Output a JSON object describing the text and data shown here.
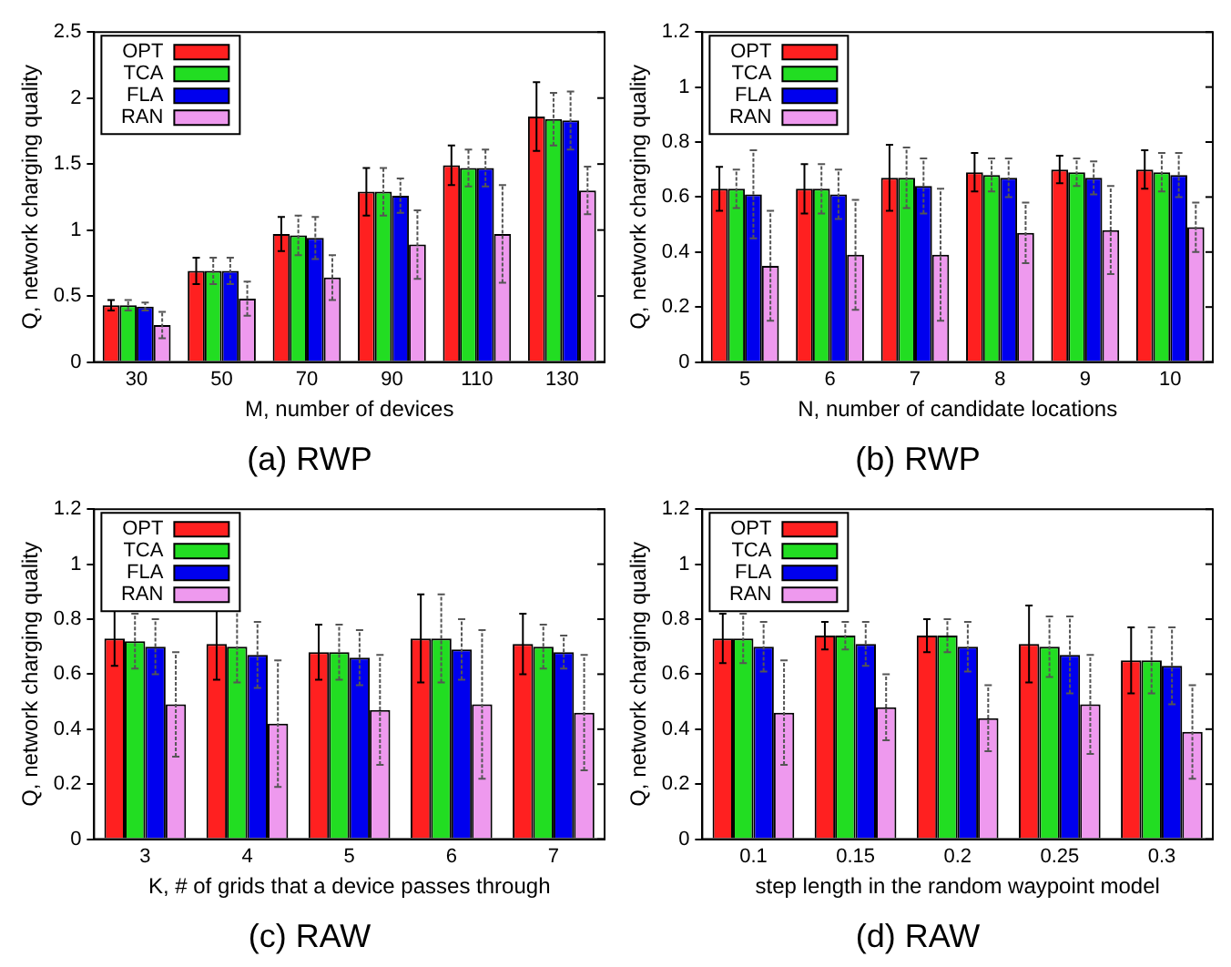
{
  "chart_data": [
    {
      "type": "bar",
      "title": "(a) RWP",
      "xlabel": "M, number of devices",
      "ylabel": "Q, network charging quality",
      "categories": [
        "30",
        "50",
        "70",
        "90",
        "110",
        "130"
      ],
      "ylim": [
        0,
        2.5
      ],
      "yticks": [
        0,
        0.5,
        1,
        1.5,
        2,
        2.5
      ],
      "grid": false,
      "legend": "top left",
      "series": [
        {
          "name": "OPT",
          "color": "#ff2020",
          "values": [
            0.43,
            0.69,
            0.97,
            1.29,
            1.49,
            1.86
          ],
          "errors": [
            0.04,
            0.1,
            0.13,
            0.18,
            0.15,
            0.26
          ]
        },
        {
          "name": "TCA",
          "color": "#22dd22",
          "values": [
            0.43,
            0.69,
            0.96,
            1.29,
            1.47,
            1.84
          ],
          "errors": [
            0.04,
            0.1,
            0.15,
            0.18,
            0.14,
            0.2
          ]
        },
        {
          "name": "FLA",
          "color": "#0000ee",
          "values": [
            0.42,
            0.69,
            0.94,
            1.26,
            1.47,
            1.83
          ],
          "errors": [
            0.03,
            0.1,
            0.16,
            0.13,
            0.14,
            0.22
          ]
        },
        {
          "name": "RAN",
          "color": "#ee99ee",
          "values": [
            0.28,
            0.48,
            0.64,
            0.89,
            0.97,
            1.3
          ],
          "errors": [
            0.1,
            0.13,
            0.17,
            0.26,
            0.37,
            0.18
          ]
        }
      ]
    },
    {
      "type": "bar",
      "title": "(b) RWP",
      "xlabel": "N, number of candidate locations",
      "ylabel": "Q, network charging quality",
      "categories": [
        "5",
        "6",
        "7",
        "8",
        "9",
        "10"
      ],
      "ylim": [
        0,
        1.2
      ],
      "yticks": [
        0,
        0.2,
        0.4,
        0.6,
        0.8,
        1,
        1.2
      ],
      "grid": false,
      "legend": "top left",
      "series": [
        {
          "name": "OPT",
          "color": "#ff2020",
          "values": [
            0.63,
            0.63,
            0.67,
            0.69,
            0.7,
            0.7
          ],
          "errors": [
            0.08,
            0.09,
            0.12,
            0.07,
            0.05,
            0.07
          ]
        },
        {
          "name": "TCA",
          "color": "#22dd22",
          "values": [
            0.63,
            0.63,
            0.67,
            0.68,
            0.69,
            0.69
          ],
          "errors": [
            0.07,
            0.09,
            0.11,
            0.06,
            0.05,
            0.07
          ]
        },
        {
          "name": "FLA",
          "color": "#0000ee",
          "values": [
            0.61,
            0.61,
            0.64,
            0.67,
            0.67,
            0.68
          ],
          "errors": [
            0.16,
            0.09,
            0.1,
            0.07,
            0.06,
            0.08
          ]
        },
        {
          "name": "RAN",
          "color": "#ee99ee",
          "values": [
            0.35,
            0.39,
            0.39,
            0.47,
            0.48,
            0.49
          ],
          "errors": [
            0.2,
            0.2,
            0.24,
            0.11,
            0.16,
            0.09
          ]
        }
      ]
    },
    {
      "type": "bar",
      "title": "(c) RAW",
      "xlabel": "K, # of grids that a device passes through",
      "ylabel": "Q, network charging quality",
      "categories": [
        "3",
        "4",
        "5",
        "6",
        "7"
      ],
      "ylim": [
        0,
        1.2
      ],
      "yticks": [
        0,
        0.2,
        0.4,
        0.6,
        0.8,
        1,
        1.2
      ],
      "grid": false,
      "legend": "top left",
      "series": [
        {
          "name": "OPT",
          "color": "#ff2020",
          "values": [
            0.73,
            0.71,
            0.68,
            0.73,
            0.71
          ],
          "errors": [
            0.1,
            0.13,
            0.1,
            0.16,
            0.11
          ]
        },
        {
          "name": "TCA",
          "color": "#22dd22",
          "values": [
            0.72,
            0.7,
            0.68,
            0.73,
            0.7
          ],
          "errors": [
            0.1,
            0.13,
            0.1,
            0.16,
            0.08
          ]
        },
        {
          "name": "FLA",
          "color": "#0000ee",
          "values": [
            0.7,
            0.67,
            0.66,
            0.69,
            0.68
          ],
          "errors": [
            0.1,
            0.12,
            0.1,
            0.11,
            0.06
          ]
        },
        {
          "name": "RAN",
          "color": "#ee99ee",
          "values": [
            0.49,
            0.42,
            0.47,
            0.49,
            0.46
          ],
          "errors": [
            0.19,
            0.23,
            0.2,
            0.27,
            0.21
          ]
        }
      ]
    },
    {
      "type": "bar",
      "title": "(d) RAW",
      "xlabel": "step length in the random waypoint model",
      "ylabel": "Q, network charging quality",
      "categories": [
        "0.1",
        "0.15",
        "0.2",
        "0.25",
        "0.3"
      ],
      "ylim": [
        0,
        1.2
      ],
      "yticks": [
        0,
        0.2,
        0.4,
        0.6,
        0.8,
        1,
        1.2
      ],
      "grid": false,
      "legend": "top left",
      "series": [
        {
          "name": "OPT",
          "color": "#ff2020",
          "values": [
            0.73,
            0.74,
            0.74,
            0.71,
            0.65
          ],
          "errors": [
            0.09,
            0.05,
            0.06,
            0.14,
            0.12
          ]
        },
        {
          "name": "TCA",
          "color": "#22dd22",
          "values": [
            0.73,
            0.74,
            0.74,
            0.7,
            0.65
          ],
          "errors": [
            0.09,
            0.05,
            0.06,
            0.11,
            0.12
          ]
        },
        {
          "name": "FLA",
          "color": "#0000ee",
          "values": [
            0.7,
            0.71,
            0.7,
            0.67,
            0.63
          ],
          "errors": [
            0.09,
            0.08,
            0.09,
            0.14,
            0.14
          ]
        },
        {
          "name": "RAN",
          "color": "#ee99ee",
          "values": [
            0.46,
            0.48,
            0.44,
            0.49,
            0.39
          ],
          "errors": [
            0.19,
            0.12,
            0.12,
            0.18,
            0.17
          ]
        }
      ]
    }
  ]
}
